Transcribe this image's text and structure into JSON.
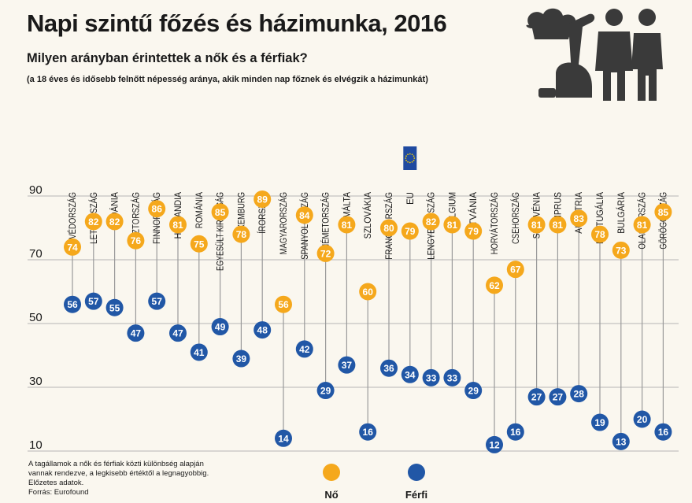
{
  "title": "Napi szintű főzés és házimunka, 2016",
  "subtitle": "Milyen arányban érintettek a nők és a férfiak?",
  "note": "(a 18 éves és idősebb felnőtt népesség aránya, akik minden nap főznek és elvégzik a házimunkát)",
  "footnote": [
    "A tagállamok a nők és férfiak közti különbség alapján",
    "vannak rendezve, a legkisebb értéktől a legnagyobbig.",
    "Előzetes adatok.",
    "Forrás: Eurofound"
  ],
  "colors": {
    "women": "#f5a81c",
    "men": "#2157a6",
    "connector": "#9a9a9a",
    "grid": "#b5b5b5",
    "eu_flag": "#1f4aa0"
  },
  "icons": [
    "chef-hat-icon",
    "vacuum-cleaner-icon",
    "man-icon",
    "woman-icon"
  ],
  "chart_data": {
    "type": "scatter",
    "categories": [
      "SVÉDORSZÁG",
      "LETTORSZÁG",
      "DÁNIA",
      "ÉSZTORSZÁG",
      "FINNORSZÁG",
      "HOLLANDIA",
      "ROMÁNIA",
      "EGYESÜLT KIRÁLYSÁG",
      "LUXEMBURG",
      "ÍRORSZÁG",
      "MAGYARORSZÁG",
      "SPANYOLORSZÁG",
      "NÉMETORSZÁG",
      "MÁLTA",
      "SZLOVÁKIA",
      "FRANCIAORSZÁG",
      "EU",
      "LENGYELORSZÁG",
      "BELGIUM",
      "LITVÁNIA",
      "HORVÁTORSZÁG",
      "CSEHORSZÁG",
      "SZLOVÉNIA",
      "CIPRUS",
      "AUSZTRIA",
      "PORTUGÁLIA",
      "BULGÁRIA",
      "OLASZORSZÁG",
      "GÖRÖGORSZÁG"
    ],
    "series": [
      {
        "name": "Nő",
        "values": [
          74,
          82,
          82,
          76,
          86,
          81,
          75,
          85,
          78,
          89,
          56,
          84,
          72,
          81,
          60,
          80,
          79,
          82,
          81,
          79,
          62,
          67,
          81,
          81,
          83,
          78,
          73,
          81,
          85
        ]
      },
      {
        "name": "Férfi",
        "values": [
          56,
          57,
          55,
          47,
          57,
          47,
          41,
          49,
          39,
          48,
          14,
          42,
          29,
          37,
          16,
          36,
          34,
          33,
          33,
          29,
          12,
          16,
          27,
          27,
          28,
          19,
          13,
          20,
          16
        ]
      }
    ],
    "yticks": [
      90,
      70,
      50,
      30,
      10
    ],
    "ylim": [
      10,
      90
    ],
    "grid": true,
    "legend_position": "bottom"
  }
}
